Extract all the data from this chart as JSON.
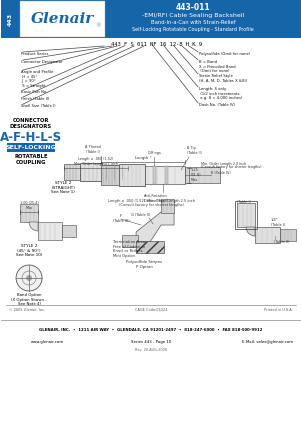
{
  "title_number": "443-011",
  "title_line1": "-EMI/RFI Cable Sealing Backshell",
  "title_line2": "Band-In-a-Can with Strain-Relief",
  "title_line3": "Self-Locking Rotatable Coupling - Standard Profile",
  "header_bg": "#1565a8",
  "header_text_color": "#ffffff",
  "body_bg": "#ffffff",
  "logo_text": "Glenair",
  "connector_designators": "A-F-H-L-S",
  "self_locking_text": "SELF-LOCKING",
  "part_number_string": "443 F S 011 NF 16 12-8 H K 9",
  "footer_line1": "GLENAIR, INC.  •  1211 AIR WAY  •  GLENDALE, CA 91201-2497  •  818-247-6000  •  FAX 818-500-9912",
  "footer_line2": "www.glenair.com",
  "footer_line3": "Series 443 - Page 10",
  "footer_line4": "E-Mail: sales@glenair.com",
  "footer_line5": "Rev. 20-AUG-2008",
  "copyright": "© 2005 Glenair, Inc.",
  "cage_code": "CAGE Code:06324",
  "printed": "Printed in U.S.A."
}
